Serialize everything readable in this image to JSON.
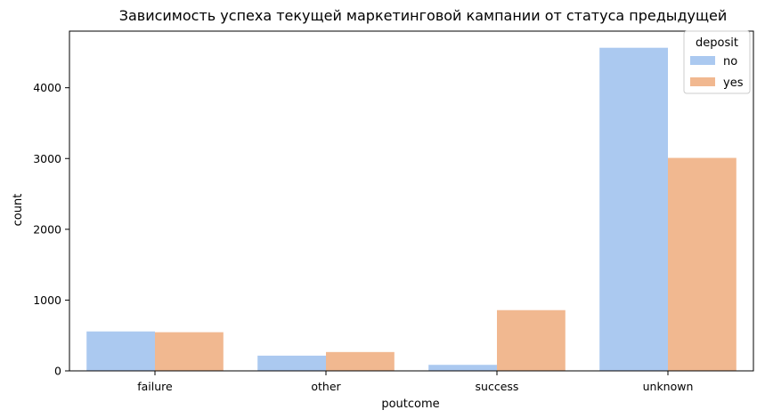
{
  "chart_data": {
    "type": "bar",
    "title": "Зависимость успеха текущей маркетинговой кампании от статуса предыдущей",
    "xlabel": "poutcome",
    "ylabel": "count",
    "categories": [
      "failure",
      "other",
      "success",
      "unknown"
    ],
    "series": [
      {
        "name": "no",
        "color": "#abc9f0",
        "values": [
          557,
          215,
          85,
          4565
        ]
      },
      {
        "name": "yes",
        "color": "#f1b890",
        "values": [
          546,
          266,
          858,
          3009
        ]
      }
    ],
    "ylim": [
      0,
      4800
    ],
    "yticks": [
      0,
      1000,
      2000,
      3000,
      4000
    ],
    "legend": {
      "title": "deposit",
      "position": "top-right"
    },
    "grid": false
  }
}
